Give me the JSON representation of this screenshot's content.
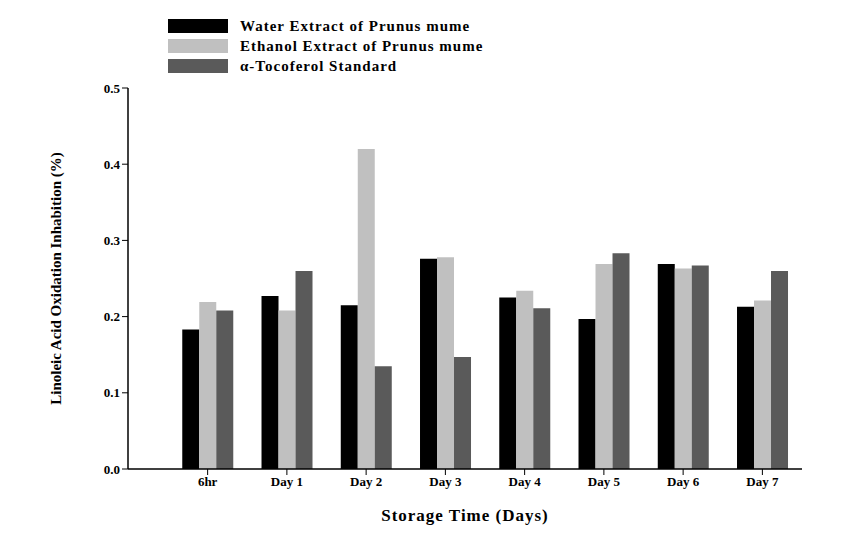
{
  "chart_data": {
    "type": "bar",
    "x_label": "Storage Time (Days)",
    "y_label": "Linoleic Acid Oxidation Inhabition (%)",
    "categories": [
      "6hr",
      "Day 1",
      "Day 2",
      "Day 3",
      "Day 4",
      "Day 5",
      "Day 6",
      "Day 7"
    ],
    "series": [
      {
        "name": "Water Extract of Prunus mume",
        "color": "#000000",
        "values": [
          0.183,
          0.227,
          0.215,
          0.276,
          0.225,
          0.197,
          0.269,
          0.213
        ]
      },
      {
        "name": "Ethanol Extract of Prunus mume",
        "color": "#c0c0c0",
        "values": [
          0.219,
          0.208,
          0.42,
          0.278,
          0.234,
          0.269,
          0.263,
          0.221
        ]
      },
      {
        "name": "α-Tocoferol Standard",
        "color": "#5a5a5a",
        "values": [
          0.208,
          0.26,
          0.135,
          0.147,
          0.211,
          0.283,
          0.267,
          0.26
        ]
      }
    ],
    "ylim": [
      0,
      0.5
    ],
    "yticks": [
      {
        "value": 0,
        "label": "0.0"
      },
      0.1,
      0.2,
      0.3,
      0.4,
      0.5
    ],
    "grid": false,
    "legend": "upper left"
  }
}
